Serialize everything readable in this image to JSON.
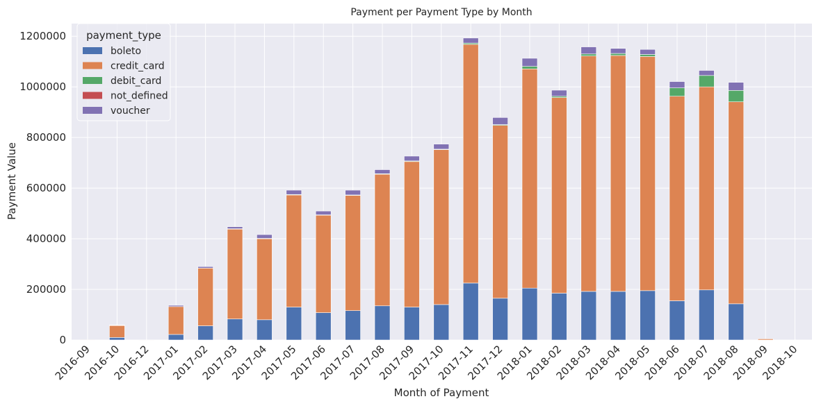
{
  "chart_data": {
    "type": "bar",
    "stacked": true,
    "title": "Payment per Payment Type by Month",
    "xlabel": "Month of Payment",
    "ylabel": "Payment Value",
    "ylim": [
      0,
      1250000
    ],
    "yticks": [
      0,
      200000,
      400000,
      600000,
      800000,
      1000000,
      1200000
    ],
    "grid": true,
    "legend_title": "payment_type",
    "legend_position": "top-left",
    "categories": [
      "2016-09",
      "2016-10",
      "2016-12",
      "2017-01",
      "2017-02",
      "2017-03",
      "2017-04",
      "2017-05",
      "2017-06",
      "2017-07",
      "2017-08",
      "2017-09",
      "2017-10",
      "2017-11",
      "2017-12",
      "2018-01",
      "2018-02",
      "2018-03",
      "2018-04",
      "2018-05",
      "2018-06",
      "2018-07",
      "2018-08",
      "2018-09",
      "2018-10"
    ],
    "series": [
      {
        "name": "boleto",
        "color": "#4c72b0",
        "values": [
          0,
          10000,
          0,
          22000,
          56000,
          83000,
          80000,
          130000,
          108000,
          116000,
          135000,
          130000,
          140000,
          225000,
          165000,
          205000,
          185000,
          192000,
          192000,
          195000,
          155000,
          198000,
          143000,
          0,
          0
        ]
      },
      {
        "name": "credit_card",
        "color": "#dd8452",
        "values": [
          250,
          48000,
          20,
          110000,
          228000,
          355000,
          320000,
          443000,
          385000,
          455000,
          520000,
          575000,
          612000,
          943000,
          683000,
          866000,
          773000,
          930000,
          932000,
          925000,
          808000,
          802000,
          798000,
          4400,
          0
        ]
      },
      {
        "name": "debit_card",
        "color": "#55a868",
        "values": [
          0,
          500,
          0,
          0,
          0,
          1500,
          1500,
          2000,
          1500,
          2000,
          2000,
          2500,
          2000,
          5000,
          3000,
          10000,
          5000,
          8000,
          8000,
          8000,
          33000,
          45000,
          45000,
          0,
          0
        ]
      },
      {
        "name": "not_defined",
        "color": "#c44e52",
        "values": [
          0,
          0,
          0,
          0,
          0,
          0,
          0,
          0,
          0,
          0,
          0,
          0,
          0,
          0,
          0,
          0,
          0,
          0,
          0,
          0,
          0,
          0,
          0,
          0,
          0
        ]
      },
      {
        "name": "voucher",
        "color": "#8172b3",
        "values": [
          0,
          1000,
          0,
          5000,
          6000,
          8000,
          15000,
          17000,
          15000,
          19000,
          16000,
          19000,
          20000,
          20000,
          28000,
          32000,
          24000,
          28000,
          20000,
          20000,
          25000,
          20000,
          32000,
          0,
          0
        ]
      }
    ]
  }
}
